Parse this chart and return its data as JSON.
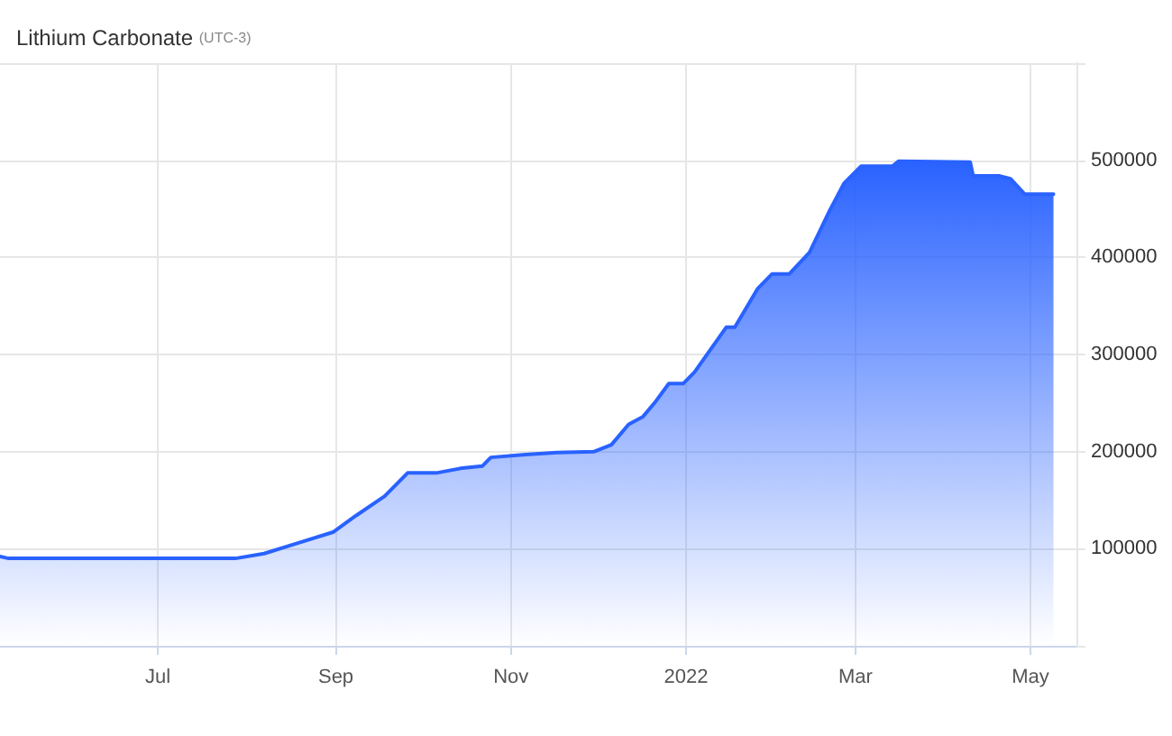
{
  "chart_data": {
    "type": "area",
    "title": "Lithium Carbonate",
    "subtitle": "(UTC-3)",
    "x": [
      "2021-05-07",
      "2021-05-10",
      "2021-07-28",
      "2021-08-07",
      "2021-08-19",
      "2021-08-31",
      "2021-09-08",
      "2021-09-18",
      "2021-09-26",
      "2021-10-06",
      "2021-10-15",
      "2021-10-22",
      "2021-10-25",
      "2021-11-06",
      "2021-11-17",
      "2021-11-30",
      "2021-12-06",
      "2021-12-12",
      "2021-12-17",
      "2021-12-21",
      "2021-12-26",
      "2021-12-31",
      "2022-01-04",
      "2022-01-15",
      "2022-01-18",
      "2022-01-26",
      "2022-01-31",
      "2022-02-06",
      "2022-02-13",
      "2022-02-20",
      "2022-02-25",
      "2022-03-03",
      "2022-03-14",
      "2022-03-16",
      "2022-04-10",
      "2022-04-11",
      "2022-04-20",
      "2022-04-24",
      "2022-04-29",
      "2022-05-09"
    ],
    "series": [
      {
        "color": "#2962ff",
        "values": [
          92000,
          90000,
          90000,
          95000,
          106000,
          117000,
          134000,
          154000,
          178000,
          178000,
          183000,
          185000,
          194000,
          197000,
          199000,
          200000,
          207000,
          228000,
          236000,
          250000,
          270000,
          270000,
          282000,
          328000,
          328000,
          368000,
          383000,
          383000,
          405000,
          448000,
          476000,
          494000,
          494000,
          499000,
          498000,
          484000,
          484000,
          481000,
          465000,
          465000
        ]
      }
    ],
    "xlim": [
      "2021-05-07",
      "2022-05-17"
    ],
    "xticks": [
      {
        "value": "2021-07-01",
        "label": "Jul"
      },
      {
        "value": "2021-09-01",
        "label": "Sep"
      },
      {
        "value": "2021-11-01",
        "label": "Nov"
      },
      {
        "value": "2022-01-01",
        "label": "2022"
      },
      {
        "value": "2022-03-01",
        "label": "Mar"
      },
      {
        "value": "2022-05-01",
        "label": "May"
      }
    ],
    "ylim": [
      0,
      600000
    ],
    "yticks": [
      {
        "value": 0,
        "label": null
      },
      100000,
      200000,
      300000,
      400000,
      500000,
      {
        "value": 600000,
        "label": null
      }
    ],
    "grid": true,
    "marker": "none",
    "line_style": "solid"
  }
}
